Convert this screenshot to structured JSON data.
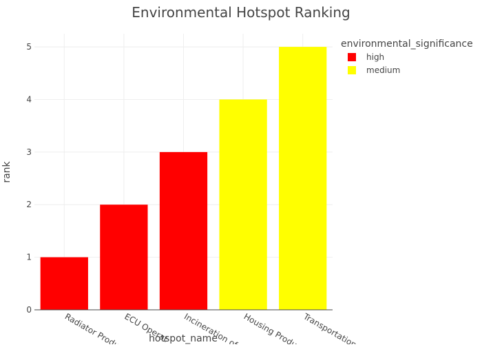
{
  "chart_data": {
    "type": "bar",
    "title": "Environmental Hotspot Ranking",
    "xlabel": "hotspot_name",
    "ylabel": "rank",
    "categories": [
      "Radiator Production",
      "ECU Operation",
      "Incineration of",
      "Housing Production",
      "Transportation"
    ],
    "tick_labels": [
      "Radiator Produ",
      "ECU Operat",
      "Incineration of",
      "Housing Produ",
      "Transportation"
    ],
    "values": [
      1,
      2,
      3,
      4,
      5
    ],
    "groups": [
      "high",
      "high",
      "high",
      "medium",
      "medium"
    ],
    "series": [
      {
        "name": "high",
        "color": "#ff0000"
      },
      {
        "name": "medium",
        "color": "#ffff00"
      }
    ],
    "legend": {
      "title": "environmental_significance",
      "placement": "top-right"
    },
    "ylim": [
      0,
      5.25
    ],
    "yticks": [
      0,
      1,
      2,
      3,
      4,
      5
    ],
    "grid": true
  }
}
